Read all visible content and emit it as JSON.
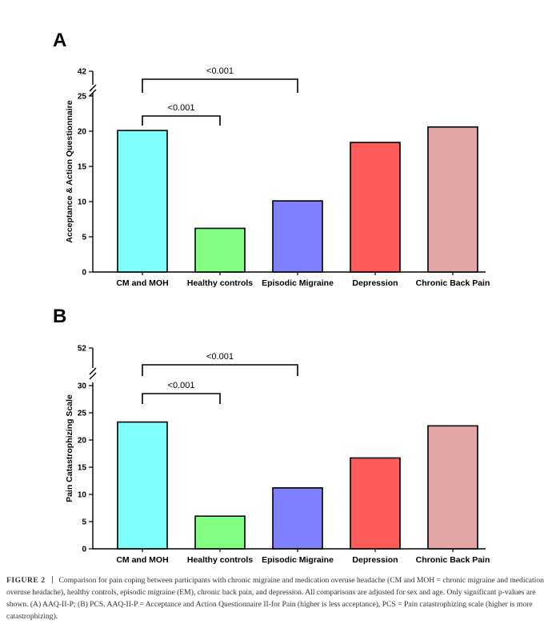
{
  "chart_data": [
    {
      "type": "bar",
      "panel": "A",
      "ylabel": "Acceptance &  Action Questionnaire",
      "categories": [
        "CM and MOH",
        "Healthy controls",
        "Episodic Migraine",
        "Depression",
        "Chronic Back Pain"
      ],
      "values": [
        20.1,
        6.2,
        10.1,
        18.4,
        20.6
      ],
      "colors": [
        "#80ffff",
        "#80ff80",
        "#8080ff",
        "#ff5a5a",
        "#e3a6a6"
      ],
      "yticks": [
        0,
        5,
        10,
        15,
        20,
        25
      ],
      "ylim": [
        0,
        25
      ],
      "axis_break": true,
      "ytop_tick": 42,
      "annotations": [
        {
          "from": "CM and MOH",
          "to": "Healthy controls",
          "label": "<0.001"
        },
        {
          "from": "CM and MOH",
          "to": "Episodic Migraine",
          "label": "<0.001"
        }
      ]
    },
    {
      "type": "bar",
      "panel": "B",
      "ylabel": "Pain Catastrophizing Scale",
      "categories": [
        "CM and MOH",
        "Healthy controls",
        "Episodic Migraine",
        "Depression",
        "Chronic Back Pain"
      ],
      "values": [
        23.3,
        6.0,
        11.2,
        16.7,
        22.6
      ],
      "colors": [
        "#80ffff",
        "#80ff80",
        "#8080ff",
        "#ff5a5a",
        "#e3a6a6"
      ],
      "yticks": [
        0,
        5,
        10,
        15,
        20,
        25,
        30
      ],
      "ylim": [
        0,
        30
      ],
      "axis_break": true,
      "ytop_tick": 52,
      "annotations": [
        {
          "from": "CM and MOH",
          "to": "Healthy controls",
          "label": "<0.001"
        },
        {
          "from": "CM and MOH",
          "to": "Episodic Migraine",
          "label": "<0.001"
        }
      ]
    }
  ],
  "caption": {
    "label": "FIGURE 2",
    "text": "Comparison for pain coping between participants with chronic migraine and medication overuse headache (CM and MOH = chronic migraine and medication overuse headache), healthy controls, episodic migraine (EM), chronic back pain, and depression. All comparisons are adjusted for sex and age. Only significant p-values are shown. (A) AAQ-II-P; (B) PCS. AAQ-II-P = Acceptance and Action Questionnaire II-for Pain (higher is less acceptance), PCS = Pain catastrophizing scale (higher is more catastrophizing)."
  }
}
